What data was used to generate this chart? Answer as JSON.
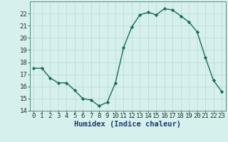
{
  "x": [
    0,
    1,
    2,
    3,
    4,
    5,
    6,
    7,
    8,
    9,
    10,
    11,
    12,
    13,
    14,
    15,
    16,
    17,
    18,
    19,
    20,
    21,
    22,
    23
  ],
  "y": [
    17.5,
    17.5,
    16.7,
    16.3,
    16.3,
    15.7,
    15.0,
    14.9,
    14.4,
    14.7,
    16.3,
    19.2,
    20.9,
    21.9,
    22.1,
    21.9,
    22.4,
    22.3,
    21.8,
    21.3,
    20.5,
    18.4,
    16.5,
    15.6
  ],
  "line_color": "#1a6b5a",
  "marker": "D",
  "marker_size": 2.2,
  "bg_color": "#d6f0ee",
  "grid_color": "#b8d8d4",
  "xlabel": "Humidex (Indice chaleur)",
  "ylim": [
    14,
    23
  ],
  "xlim": [
    -0.5,
    23.5
  ],
  "yticks": [
    14,
    15,
    16,
    17,
    18,
    19,
    20,
    21,
    22
  ],
  "xticks": [
    0,
    1,
    2,
    3,
    4,
    5,
    6,
    7,
    8,
    9,
    10,
    11,
    12,
    13,
    14,
    15,
    16,
    17,
    18,
    19,
    20,
    21,
    22,
    23
  ],
  "tick_fontsize": 6.5,
  "xlabel_fontsize": 7.5,
  "linewidth": 1.0
}
